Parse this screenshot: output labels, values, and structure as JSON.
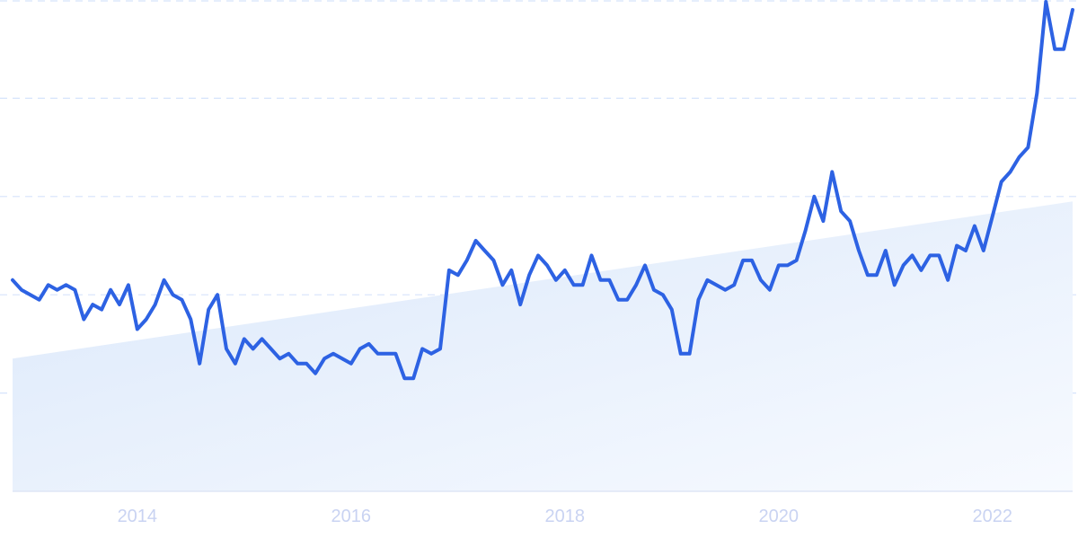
{
  "chart_data": {
    "type": "line",
    "title": "",
    "xlabel": "",
    "ylabel": "",
    "ylim": [
      0,
      100
    ],
    "yticks": [
      0,
      20,
      40,
      60,
      80,
      100
    ],
    "grid": "horizontal dashed",
    "legend": "none",
    "xtick_labels": [
      "2014",
      "2016",
      "2018",
      "2020",
      "2022"
    ],
    "xticks": [
      "2014-01",
      "2016-01",
      "2018-01",
      "2020-01",
      "2022-01"
    ],
    "x": [
      "2012-11",
      "2012-12",
      "2013-01",
      "2013-02",
      "2013-03",
      "2013-04",
      "2013-05",
      "2013-06",
      "2013-07",
      "2013-08",
      "2013-09",
      "2013-10",
      "2013-11",
      "2013-12",
      "2014-01",
      "2014-02",
      "2014-03",
      "2014-04",
      "2014-05",
      "2014-06",
      "2014-07",
      "2014-08",
      "2014-09",
      "2014-10",
      "2014-11",
      "2014-12",
      "2015-01",
      "2015-02",
      "2015-03",
      "2015-04",
      "2015-05",
      "2015-06",
      "2015-07",
      "2015-08",
      "2015-09",
      "2015-10",
      "2015-11",
      "2015-12",
      "2016-01",
      "2016-02",
      "2016-03",
      "2016-04",
      "2016-05",
      "2016-06",
      "2016-07",
      "2016-08",
      "2016-09",
      "2016-10",
      "2016-11",
      "2016-12",
      "2017-01",
      "2017-02",
      "2017-03",
      "2017-04",
      "2017-05",
      "2017-06",
      "2017-07",
      "2017-08",
      "2017-09",
      "2017-10",
      "2017-11",
      "2017-12",
      "2018-01",
      "2018-02",
      "2018-03",
      "2018-04",
      "2018-05",
      "2018-06",
      "2018-07",
      "2018-08",
      "2018-09",
      "2018-10",
      "2018-11",
      "2018-12",
      "2019-01",
      "2019-02",
      "2019-03",
      "2019-04",
      "2019-05",
      "2019-06",
      "2019-07",
      "2019-08",
      "2019-09",
      "2019-10",
      "2019-11",
      "2019-12",
      "2020-01",
      "2020-02",
      "2020-03",
      "2020-04",
      "2020-05",
      "2020-06",
      "2020-07",
      "2020-08",
      "2020-09",
      "2020-10",
      "2020-11",
      "2020-12",
      "2021-01",
      "2021-02",
      "2021-03",
      "2021-04",
      "2021-05",
      "2021-06",
      "2021-07",
      "2021-08",
      "2021-09",
      "2021-10",
      "2021-11",
      "2021-12",
      "2022-01",
      "2022-02",
      "2022-03",
      "2022-04",
      "2022-05",
      "2022-06",
      "2022-07",
      "2022-08",
      "2022-09",
      "2022-10"
    ],
    "series": [
      {
        "values": [
          43,
          41,
          40,
          39,
          42,
          41,
          42,
          41,
          35,
          38,
          37,
          41,
          38,
          42,
          33,
          35,
          38,
          43,
          40,
          39,
          35,
          26,
          37,
          40,
          29,
          26,
          31,
          29,
          31,
          29,
          27,
          28,
          26,
          26,
          24,
          27,
          28,
          27,
          26,
          29,
          30,
          28,
          28,
          28,
          23,
          23,
          29,
          28,
          29,
          45,
          44,
          47,
          51,
          49,
          47,
          42,
          45,
          38,
          44,
          48,
          46,
          43,
          45,
          42,
          42,
          48,
          43,
          43,
          39,
          39,
          42,
          46,
          41,
          40,
          37,
          28,
          28,
          39,
          43,
          42,
          41,
          42,
          47,
          47,
          43,
          41,
          46,
          46,
          47,
          53,
          60,
          55,
          65,
          57,
          55,
          49,
          44,
          44,
          49,
          42,
          46,
          48,
          45,
          48,
          48,
          43,
          50,
          49,
          54,
          49,
          56,
          63,
          65,
          68,
          70,
          81,
          100,
          90,
          90,
          98
        ],
        "color": "#2d62e3"
      }
    ],
    "trend": {
      "start": 27,
      "end": 59,
      "color": "#dce9fa"
    },
    "colors": {
      "line": "#2d62e3",
      "grid": "#d6e4fb",
      "axis": "#dfe6f5",
      "tick_text": "#c9d3f2"
    }
  }
}
